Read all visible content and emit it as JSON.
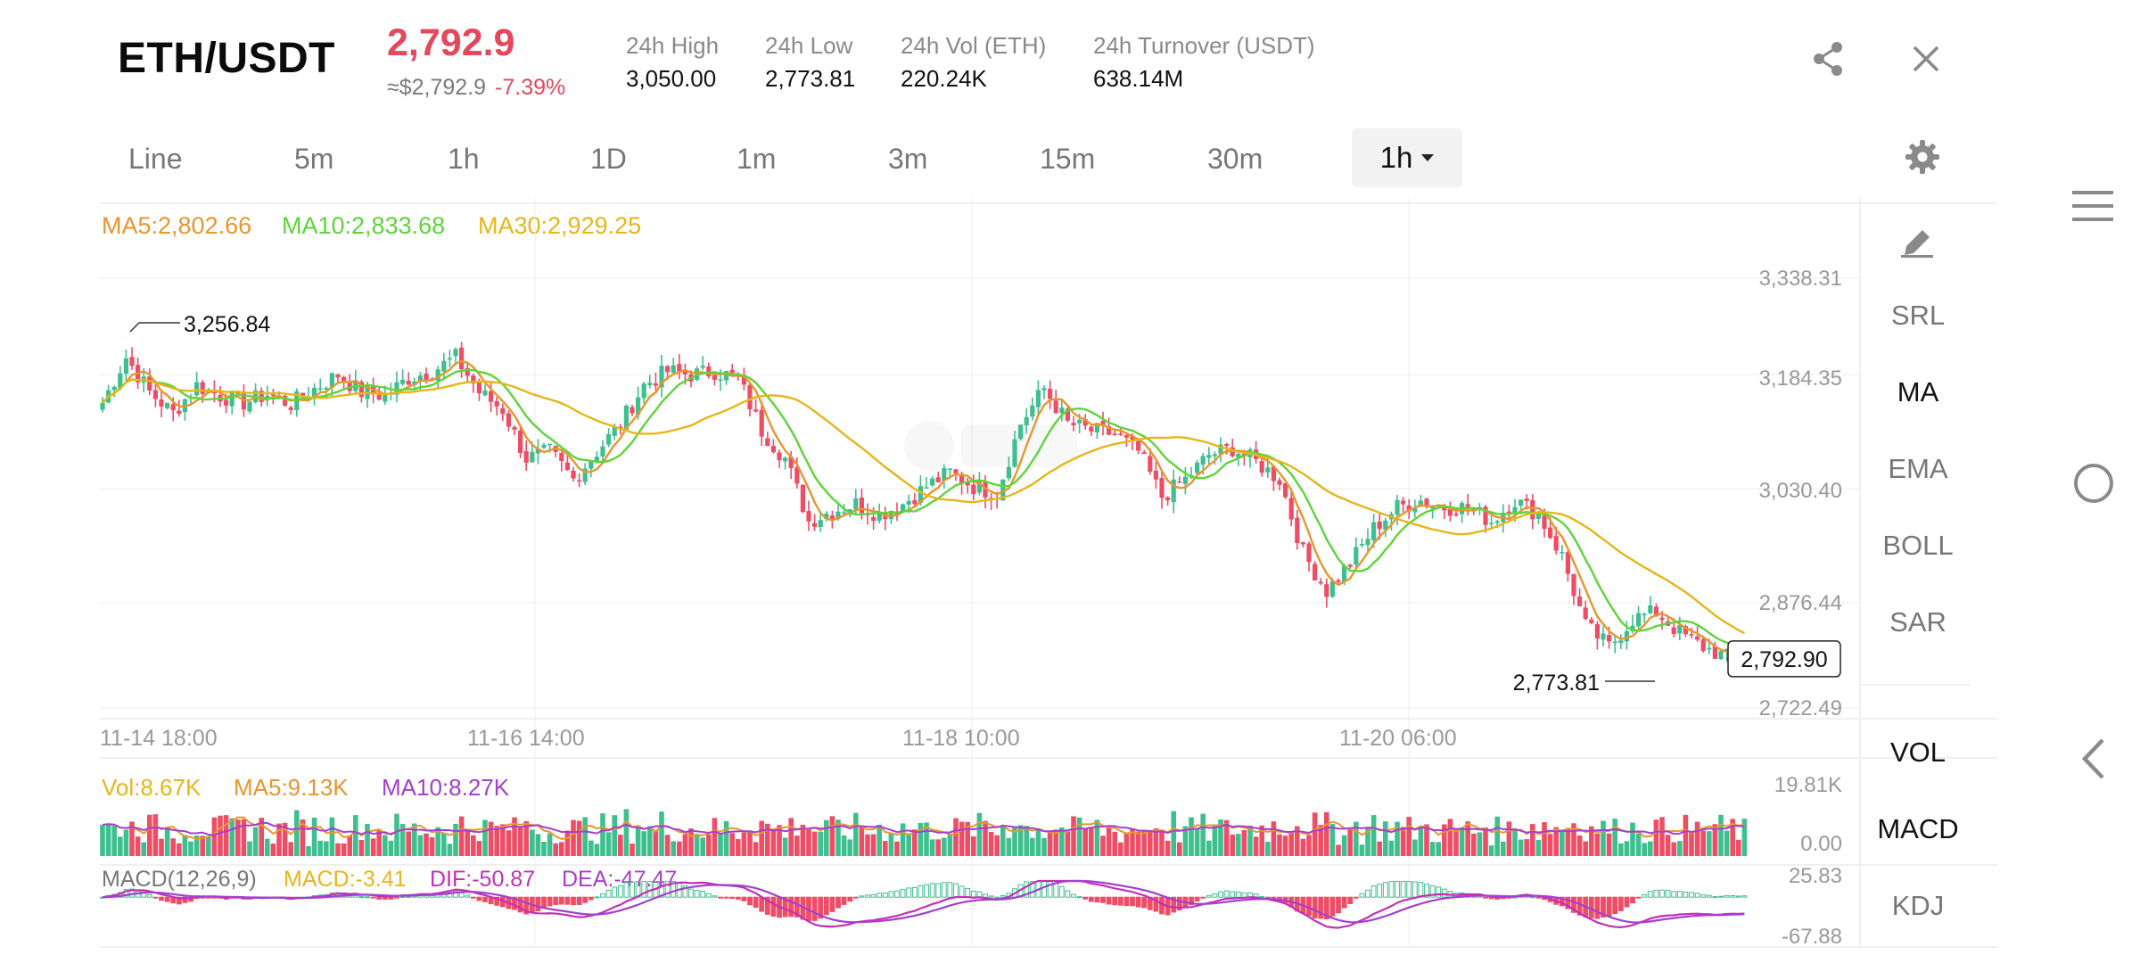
{
  "header": {
    "pair": "ETH/USDT",
    "price": "2,792.9",
    "approx": "≈$2,792.9",
    "change": "-7.39%",
    "stats": [
      {
        "label": "24h High",
        "value": "3,050.00"
      },
      {
        "label": "24h Low",
        "value": "2,773.81"
      },
      {
        "label": "24h Vol (ETH)",
        "value": "220.24K"
      },
      {
        "label": "24h Turnover (USDT)",
        "value": "638.14M"
      }
    ]
  },
  "tabs": [
    "Line",
    "5m",
    "1h",
    "1D",
    "1m",
    "3m",
    "15m",
    "30m"
  ],
  "selected_interval": "1h",
  "indicators": {
    "ma5": "MA5:2,802.66",
    "ma10": "MA10:2,833.68",
    "ma30": "MA30:2,929.25",
    "vol": "Vol:8.67K",
    "vol_ma5": "MA5:9.13K",
    "vol_ma10": "MA10:8.27K",
    "macd_title": "MACD(12,26,9)",
    "macd": "MACD:-3.41",
    "dif": "DIF:-50.87",
    "dea": "DEA:-47.47"
  },
  "right_panel": {
    "top": [
      "SRL",
      "MA",
      "EMA",
      "BOLL",
      "SAR"
    ],
    "bottom": [
      "VOL",
      "MACD",
      "KDJ"
    ],
    "active": [
      "MA",
      "VOL",
      "MACD"
    ]
  },
  "chart_data": {
    "type": "candlestick",
    "price_axis": [
      "3,338.31",
      "3,184.35",
      "3,030.40",
      "2,876.44",
      "2,722.49"
    ],
    "price_range": [
      2722.49,
      3338.31
    ],
    "time_axis": [
      "11-14 18:00",
      "11-16 14:00",
      "11-18 10:00",
      "11-20 06:00"
    ],
    "high_marker": "3,256.84",
    "low_marker": "2,773.81",
    "last_price": "2,792.90",
    "volume_axis": [
      "19.81K",
      "0.00"
    ],
    "volume_max": 19810,
    "macd_axis": [
      "25.83",
      "-67.88"
    ],
    "macd_range": [
      -67.88,
      25.83
    ],
    "close_keyframes": [
      [
        0,
        3160
      ],
      [
        4,
        3225
      ],
      [
        8,
        3175
      ],
      [
        12,
        3145
      ],
      [
        16,
        3185
      ],
      [
        20,
        3170
      ],
      [
        24,
        3160
      ],
      [
        28,
        3172
      ],
      [
        32,
        3158
      ],
      [
        36,
        3180
      ],
      [
        40,
        3200
      ],
      [
        44,
        3175
      ],
      [
        48,
        3170
      ],
      [
        52,
        3195
      ],
      [
        56,
        3205
      ],
      [
        60,
        3225
      ],
      [
        64,
        3175
      ],
      [
        68,
        3150
      ],
      [
        72,
        3080
      ],
      [
        76,
        3090
      ],
      [
        80,
        3050
      ],
      [
        84,
        3090
      ],
      [
        88,
        3130
      ],
      [
        92,
        3185
      ],
      [
        96,
        3205
      ],
      [
        100,
        3200
      ],
      [
        104,
        3205
      ],
      [
        108,
        3195
      ],
      [
        112,
        3120
      ],
      [
        116,
        3080
      ],
      [
        120,
        2990
      ],
      [
        124,
        3005
      ],
      [
        128,
        3015
      ],
      [
        132,
        3000
      ],
      [
        136,
        3015
      ],
      [
        140,
        3040
      ],
      [
        144,
        3060
      ],
      [
        148,
        3040
      ],
      [
        152,
        3030
      ],
      [
        156,
        3130
      ],
      [
        160,
        3180
      ],
      [
        164,
        3130
      ],
      [
        168,
        3120
      ],
      [
        172,
        3115
      ],
      [
        176,
        3090
      ],
      [
        180,
        3025
      ],
      [
        184,
        3050
      ],
      [
        188,
        3085
      ],
      [
        192,
        3095
      ],
      [
        196,
        3075
      ],
      [
        200,
        3050
      ],
      [
        204,
        2945
      ],
      [
        208,
        2890
      ],
      [
        212,
        2930
      ],
      [
        216,
        2980
      ],
      [
        220,
        3010
      ],
      [
        224,
        3020
      ],
      [
        228,
        3010
      ],
      [
        232,
        3010
      ],
      [
        236,
        2990
      ],
      [
        240,
        3020
      ],
      [
        244,
        3000
      ],
      [
        248,
        2940
      ],
      [
        252,
        2840
      ],
      [
        256,
        2810
      ],
      [
        260,
        2850
      ],
      [
        264,
        2860
      ],
      [
        268,
        2830
      ],
      [
        272,
        2810
      ],
      [
        276,
        2795
      ],
      [
        279,
        2792.9
      ]
    ],
    "series": [
      "MA5",
      "MA10",
      "MA30"
    ]
  },
  "colors": {
    "up": "#3ebf8e",
    "down": "#ee4d65",
    "ma5": "#e8962e",
    "ma10": "#5fd43b",
    "ma30": "#e8b51b",
    "macd_dif": "#c52fb7",
    "macd_dea": "#a43fd0",
    "grid": "#ececec",
    "price_red": "#e5475b"
  }
}
